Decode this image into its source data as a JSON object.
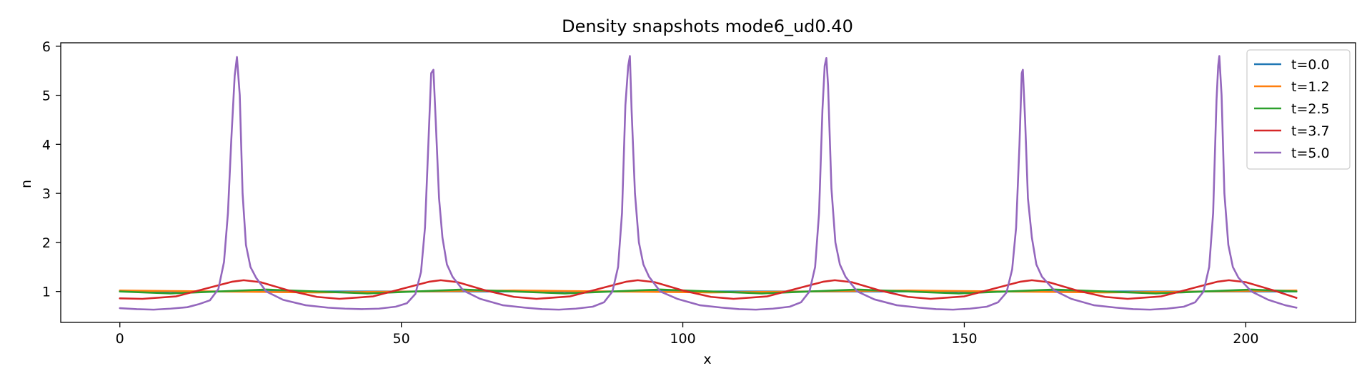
{
  "chart_data": {
    "type": "line",
    "title": "Density snapshots  mode6_ud0.40",
    "xlabel": "x",
    "ylabel": "n",
    "xlim": [
      -10.5,
      219.5
    ],
    "ylim": [
      0.37,
      6.07
    ],
    "xticks": [
      0,
      50,
      100,
      150,
      200
    ],
    "yticks": [
      1,
      2,
      3,
      4,
      5,
      6
    ],
    "grid": false,
    "legend_position": "top-right",
    "x_range": [
      0,
      209
    ],
    "period": 34.9,
    "peak_centers": [
      20.8,
      55.7,
      90.6,
      125.5,
      160.4,
      195.3
    ],
    "series": [
      {
        "name": "t=0.0",
        "color": "#1f77b4",
        "x": [
          0,
          26,
          52,
          78,
          104,
          130,
          156,
          182,
          209
        ],
        "y": [
          1.0,
          1.0,
          1.0,
          1.0,
          1.0,
          1.0,
          1.0,
          1.0,
          1.0
        ]
      },
      {
        "name": "t=1.2",
        "color": "#ff7f0e",
        "x": [
          0,
          9,
          17.5,
          26,
          35,
          44,
          52.5,
          61,
          70,
          79,
          87.5,
          96,
          105,
          114,
          122.5,
          131,
          140,
          149,
          157.5,
          166,
          175,
          184,
          192.5,
          201,
          209
        ],
        "y": [
          1.02,
          1.01,
          1.0,
          0.99,
          0.98,
          0.99,
          1.0,
          1.01,
          1.02,
          1.01,
          1.0,
          0.99,
          0.98,
          0.99,
          1.0,
          1.01,
          1.02,
          1.01,
          1.0,
          0.99,
          0.98,
          0.99,
          1.0,
          1.01,
          1.02
        ]
      },
      {
        "name": "t=2.5",
        "color": "#2ca02c",
        "x": [
          0,
          9,
          17.5,
          26,
          35,
          44,
          52.5,
          61,
          70,
          79,
          87.5,
          96,
          105,
          114,
          122.5,
          131,
          140,
          149,
          157.5,
          166,
          175,
          184,
          192.5,
          201,
          209
        ],
        "y": [
          1.0,
          0.96,
          1.0,
          1.04,
          1.0,
          0.96,
          1.0,
          1.04,
          1.0,
          0.96,
          1.0,
          1.04,
          1.0,
          0.96,
          1.0,
          1.04,
          1.0,
          0.96,
          1.0,
          1.04,
          1.0,
          0.96,
          1.0,
          1.04,
          1.0
        ]
      },
      {
        "name": "t=3.7",
        "color": "#d62728",
        "x": [
          0,
          4,
          10,
          16,
          20,
          22,
          25,
          30,
          35,
          39,
          45,
          51,
          55,
          57,
          60,
          65,
          70,
          74,
          80,
          86,
          90,
          92,
          95,
          100,
          105,
          109,
          115,
          121,
          125,
          127,
          130,
          135,
          140,
          144,
          150,
          156,
          160,
          162,
          165,
          170,
          175,
          179,
          185,
          191,
          195,
          197,
          200,
          205,
          209
        ],
        "y": [
          0.86,
          0.85,
          0.9,
          1.08,
          1.2,
          1.23,
          1.19,
          1.02,
          0.89,
          0.85,
          0.9,
          1.08,
          1.2,
          1.23,
          1.19,
          1.02,
          0.89,
          0.85,
          0.9,
          1.08,
          1.2,
          1.23,
          1.19,
          1.02,
          0.89,
          0.85,
          0.9,
          1.08,
          1.2,
          1.23,
          1.19,
          1.02,
          0.89,
          0.85,
          0.9,
          1.08,
          1.2,
          1.23,
          1.19,
          1.02,
          0.89,
          0.85,
          0.9,
          1.08,
          1.2,
          1.23,
          1.19,
          1.02,
          0.87
        ]
      },
      {
        "name": "t=5.0",
        "color": "#9467bd",
        "x": [
          0,
          3,
          6,
          9,
          12,
          14,
          16,
          17.5,
          18.5,
          19.2,
          19.8,
          20.4,
          20.8,
          21.3,
          21.8,
          22.4,
          23.2,
          24.2,
          26,
          29,
          33,
          37,
          40,
          43,
          46,
          49,
          51,
          52.5,
          53.5,
          54.2,
          54.8,
          55.3,
          55.7,
          56.1,
          56.7,
          57.3,
          58.1,
          59.1,
          61,
          64,
          68,
          72,
          75,
          78,
          81,
          84,
          86,
          87.5,
          88.5,
          89.2,
          89.8,
          90.3,
          90.6,
          90.9,
          91.5,
          92.2,
          93,
          94,
          96,
          99,
          103,
          107,
          110,
          113,
          116,
          119,
          121,
          122.5,
          123.5,
          124.2,
          124.8,
          125.2,
          125.5,
          125.8,
          126.4,
          127.1,
          127.9,
          128.9,
          131,
          134,
          138,
          142,
          145,
          148,
          151,
          154,
          156,
          157.5,
          158.5,
          159.2,
          159.8,
          160.2,
          160.4,
          160.8,
          161.3,
          162,
          162.8,
          163.8,
          166,
          169,
          173,
          177,
          180,
          183,
          186,
          189,
          191,
          192.5,
          193.5,
          194.2,
          194.8,
          195.1,
          195.3,
          195.7,
          196.2,
          196.9,
          197.7,
          198.7,
          201,
          204,
          207,
          209
        ],
        "y": [
          0.66,
          0.64,
          0.63,
          0.65,
          0.68,
          0.74,
          0.82,
          1.05,
          1.6,
          2.6,
          4.1,
          5.4,
          5.78,
          5.0,
          3.0,
          1.95,
          1.5,
          1.28,
          1.0,
          0.83,
          0.72,
          0.67,
          0.65,
          0.64,
          0.65,
          0.69,
          0.76,
          0.95,
          1.4,
          2.3,
          4.0,
          5.45,
          5.52,
          4.5,
          2.9,
          2.1,
          1.55,
          1.3,
          1.02,
          0.85,
          0.72,
          0.67,
          0.64,
          0.63,
          0.65,
          0.69,
          0.78,
          1.0,
          1.5,
          2.6,
          4.8,
          5.6,
          5.8,
          4.7,
          3.0,
          2.0,
          1.55,
          1.3,
          1.0,
          0.85,
          0.72,
          0.67,
          0.64,
          0.63,
          0.65,
          0.69,
          0.78,
          1.0,
          1.5,
          2.6,
          4.7,
          5.6,
          5.76,
          5.2,
          3.1,
          2.0,
          1.55,
          1.3,
          1.0,
          0.84,
          0.72,
          0.67,
          0.64,
          0.63,
          0.65,
          0.69,
          0.78,
          0.98,
          1.45,
          2.3,
          4.0,
          5.45,
          5.52,
          4.5,
          2.9,
          2.1,
          1.55,
          1.3,
          1.02,
          0.85,
          0.72,
          0.67,
          0.64,
          0.63,
          0.65,
          0.69,
          0.78,
          1.0,
          1.5,
          2.6,
          4.9,
          5.6,
          5.8,
          5.0,
          3.0,
          1.95,
          1.5,
          1.28,
          1.0,
          0.83,
          0.72,
          0.67
        ]
      }
    ]
  }
}
